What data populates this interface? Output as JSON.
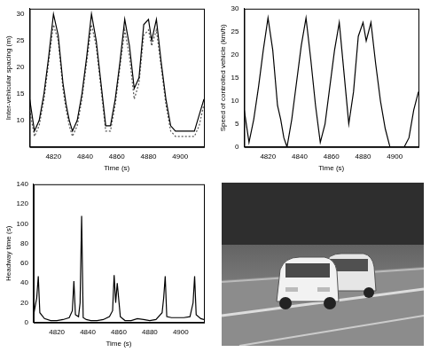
{
  "chart_data": [
    {
      "type": "line",
      "x_label": "Time (s)",
      "y_label": "Inter-vehicular spacing (m)",
      "x": [
        4805,
        4808,
        4811,
        4814,
        4817,
        4820,
        4823,
        4826,
        4828,
        4830,
        4832,
        4835,
        4838,
        4841,
        4844,
        4847,
        4850,
        4853,
        4856,
        4859,
        4862,
        4865,
        4868,
        4871,
        4874,
        4877,
        4880,
        4882,
        4885,
        4888,
        4891,
        4894,
        4897,
        4900,
        4903,
        4906,
        4909,
        4912,
        4915
      ],
      "series": [
        {
          "color": "#000000",
          "line_style": "solid",
          "values": [
            14,
            8,
            10,
            15,
            22,
            30,
            26,
            17,
            13,
            10,
            8,
            10,
            15,
            22,
            30,
            25,
            17,
            9,
            9,
            14,
            21,
            29,
            24,
            16,
            18,
            28,
            29,
            25,
            29,
            21,
            14,
            9,
            8,
            8,
            8,
            8,
            8,
            11,
            14
          ]
        },
        {
          "color": "#555555",
          "line_style": "dotted",
          "values": [
            12,
            7,
            9,
            14,
            21,
            28,
            25,
            16,
            12,
            9,
            7,
            9,
            14,
            21,
            28,
            24,
            16,
            8,
            8,
            13,
            20,
            27,
            22,
            14,
            17,
            26,
            27,
            24,
            27,
            20,
            13,
            8,
            7,
            7,
            7,
            7,
            7,
            9,
            13
          ]
        }
      ],
      "xlim": [
        4805,
        4915
      ],
      "xticks": [
        4820,
        4840,
        4860,
        4880,
        4900
      ],
      "ylim": [
        5,
        31
      ],
      "yticks": [
        10,
        15,
        20,
        25,
        30
      ],
      "grid": false
    },
    {
      "type": "line",
      "x_label": "Time (s)",
      "y_label": "Speed of controlled vehicle (km/h)",
      "x": [
        4805,
        4808,
        4811,
        4814,
        4817,
        4820,
        4823,
        4826,
        4828,
        4830,
        4832,
        4835,
        4838,
        4841,
        4844,
        4847,
        4850,
        4853,
        4856,
        4859,
        4862,
        4865,
        4868,
        4871,
        4874,
        4877,
        4880,
        4882,
        4885,
        4888,
        4891,
        4894,
        4897,
        4900,
        4903,
        4906,
        4909,
        4912,
        4915
      ],
      "series": [
        {
          "color": "#000000",
          "line_style": "solid",
          "values": [
            8,
            1,
            6,
            13,
            21,
            28,
            21,
            9,
            6,
            2,
            0,
            6,
            14,
            22,
            28,
            19,
            9,
            1,
            5,
            13,
            21,
            27,
            16,
            5,
            12,
            24,
            27,
            23,
            27,
            18,
            10,
            4,
            0,
            0,
            0,
            0,
            2,
            8,
            12
          ]
        }
      ],
      "xlim": [
        4805,
        4915
      ],
      "xticks": [
        4820,
        4840,
        4860,
        4880,
        4900
      ],
      "ylim": [
        0,
        30
      ],
      "yticks": [
        0,
        5,
        10,
        15,
        20,
        25,
        30
      ],
      "grid": false
    },
    {
      "type": "line",
      "x_label": "Time (s)",
      "y_label": "Headway time (s)",
      "x": [
        4805,
        4807,
        4808,
        4809,
        4812,
        4816,
        4820,
        4824,
        4828,
        4830,
        4831,
        4832,
        4834,
        4835,
        4836,
        4837,
        4839,
        4842,
        4846,
        4850,
        4854,
        4856,
        4857,
        4858,
        4859,
        4861,
        4864,
        4868,
        4872,
        4876,
        4880,
        4884,
        4888,
        4889,
        4890,
        4891,
        4894,
        4898,
        4902,
        4906,
        4908,
        4909,
        4910,
        4913,
        4915
      ],
      "series": [
        {
          "color": "#000000",
          "line_style": "solid",
          "values": [
            8,
            25,
            47,
            10,
            4,
            2,
            2,
            3,
            5,
            12,
            42,
            8,
            6,
            20,
            108,
            5,
            3,
            2,
            2,
            3,
            6,
            12,
            48,
            20,
            40,
            6,
            2,
            2,
            4,
            3,
            2,
            3,
            10,
            25,
            47,
            6,
            5,
            5,
            5,
            6,
            20,
            47,
            8,
            4,
            3
          ]
        }
      ],
      "xlim": [
        4805,
        4915
      ],
      "xticks": [
        4820,
        4840,
        4860,
        4880,
        4900
      ],
      "ylim": [
        0,
        140
      ],
      "yticks": [
        0,
        20,
        40,
        60,
        80,
        100,
        120,
        140
      ],
      "grid": false
    }
  ]
}
